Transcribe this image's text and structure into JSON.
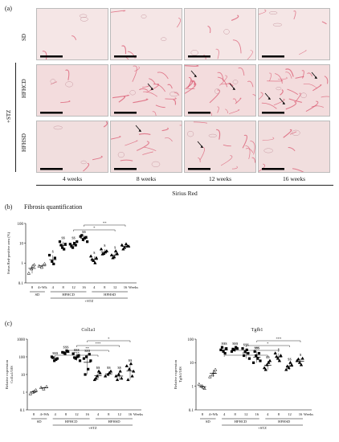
{
  "panel_a": {
    "label": "(a)",
    "rows": [
      "SD",
      "HFHCD",
      "HFHSD"
    ],
    "group_label": "+STZ",
    "columns": [
      "4 weeks",
      "8 weeks",
      "12 weeks",
      "16 weeks"
    ],
    "stain_label": "Sirius Red",
    "tile_colors": {
      "sd": "#f5e6e6",
      "hfhcd": "#f3dcdd",
      "hfhsd": "#f1dede",
      "fiber": "#d9506a"
    }
  },
  "panel_b": {
    "label": "(b)",
    "title": "Fibrosis quantification",
    "ylabel": "Sirius Red-positive area (%)",
    "x_ticks": [
      "8",
      "4+Wk",
      "4",
      "8",
      "12",
      "16",
      "4",
      "8",
      "12",
      "16",
      "Weeks"
    ],
    "group_sd": "SD",
    "group_hfhcd": "HFHCD",
    "group_hfhsd": "HFHSD",
    "group_stz": "+STZ",
    "y_ticks": [
      "0.1",
      "1",
      "10",
      "100"
    ],
    "sig_labels": [
      "$",
      "$$",
      "$$",
      "$$",
      "$",
      "$",
      "$"
    ],
    "bracket_labels": [
      "**",
      "*"
    ]
  },
  "panel_c": {
    "label": "(c)",
    "left_title": "Col1a1",
    "right_title": "Tgfb1",
    "left_ylabel": "Relative expression\nCol1a1/18S",
    "right_ylabel": "Relative expression\nTgfb1/18S",
    "left_y_ticks": [
      "0.1",
      "1",
      "10",
      "100",
      "1000"
    ],
    "right_y_ticks": [
      "0.1",
      "1",
      "10",
      "100"
    ],
    "x_ticks": [
      "8",
      "4+Wk",
      "4",
      "8",
      "12",
      "16",
      "4",
      "8",
      "12",
      "16",
      "Weeks"
    ],
    "group_sd": "SD",
    "group_hfhcd": "HFHCD",
    "group_hfhsd": "HFHSD",
    "group_stz": "+STZ",
    "left_sig": [
      "$$$",
      "$$$",
      "$$$",
      "$$$",
      "$$",
      "$$",
      "$$",
      "$$"
    ],
    "right_sig": [
      "$$$",
      "$$$",
      "$$$",
      "$$$",
      "$$",
      "$",
      "$$",
      "$"
    ],
    "left_brackets": [
      "*",
      "***",
      "**",
      "***"
    ],
    "right_brackets": [
      "***",
      "*",
      "**",
      "**"
    ]
  },
  "chart_data": [
    {
      "type": "scatter",
      "title": "Fibrosis quantification",
      "ylabel": "Sirius Red-positive area (%)",
      "y_scale": "log",
      "ylim": [
        0.1,
        100
      ],
      "categories": [
        "SD 8",
        "SD 4+Wk",
        "HFHCD 4",
        "HFHCD 8",
        "HFHCD 12",
        "HFHCD 16",
        "HFHSD 4",
        "HFHSD 8",
        "HFHSD 12",
        "HFHSD 16"
      ],
      "series": [
        {
          "values": [
            [
              0.5,
              0.8,
              0.3,
              0.7
            ],
            [
              0.6,
              0.9,
              0.7
            ],
            [
              1.2,
              1.8,
              2.5,
              0.9
            ],
            [
              6,
              9,
              12,
              5,
              8
            ],
            [
              6,
              8,
              9,
              10,
              7,
              12
            ],
            [
              15,
              20,
              22,
              18,
              25,
              12
            ],
            [
              1.3,
              1.8,
              2.2,
              1.0,
              1.5
            ],
            [
              3,
              4,
              5,
              3.5,
              2.8
            ],
            [
              2,
              3,
              2.5,
              4,
              1.8
            ],
            [
              6,
              7,
              8,
              9,
              5,
              7
            ]
          ]
        }
      ]
    },
    {
      "type": "scatter",
      "title": "Col1a1",
      "ylabel": "Relative expression Col1a1/18S",
      "y_scale": "log",
      "ylim": [
        0.1,
        1000
      ],
      "categories": [
        "SD 8",
        "SD 4+Wk",
        "HFHCD 4",
        "HFHCD 8",
        "HFHCD 12",
        "HFHCD 16",
        "HFHSD 4",
        "HFHSD 8",
        "HFHSD 12",
        "HFHSD 16"
      ],
      "series": [
        {
          "values": [
            [
              1,
              1.3,
              0.8,
              1.1
            ],
            [
              1.5,
              2,
              1.8
            ],
            [
              60,
              80,
              100,
              70,
              90
            ],
            [
              150,
              200,
              180,
              220,
              170
            ],
            [
              80,
              120,
              150,
              100,
              90,
              60
            ],
            [
              100,
              140,
              80,
              20,
              10,
              60
            ],
            [
              8,
              12,
              5,
              15,
              6
            ],
            [
              10,
              15,
              8,
              12
            ],
            [
              10,
              6,
              8,
              15,
              5
            ],
            [
              20,
              8,
              30,
              40,
              5,
              15
            ]
          ]
        }
      ]
    },
    {
      "type": "scatter",
      "title": "Tgfb1",
      "ylabel": "Relative expression Tgfb1/18S",
      "y_scale": "log",
      "ylim": [
        0.1,
        100
      ],
      "categories": [
        "SD 8",
        "SD 4+Wk",
        "HFHCD 4",
        "HFHCD 8",
        "HFHCD 12",
        "HFHCD 16",
        "HFHSD 4",
        "HFHSD 8",
        "HFHSD 12",
        "HFHSD 16"
      ],
      "series": [
        {
          "values": [
            [
              1,
              0.8,
              1.2,
              0.9
            ],
            [
              3,
              5,
              2.5,
              4
            ],
            [
              30,
              40,
              35,
              25,
              45
            ],
            [
              35,
              40,
              30,
              45,
              38
            ],
            [
              30,
              25,
              40,
              35,
              20,
              15
            ],
            [
              20,
              25,
              10,
              15,
              30,
              12
            ],
            [
              8,
              12,
              6,
              10,
              5
            ],
            [
              15,
              20,
              25,
              12,
              18
            ],
            [
              6,
              8,
              5,
              10,
              7
            ],
            [
              10,
              15,
              12,
              8,
              14
            ]
          ]
        }
      ]
    }
  ]
}
